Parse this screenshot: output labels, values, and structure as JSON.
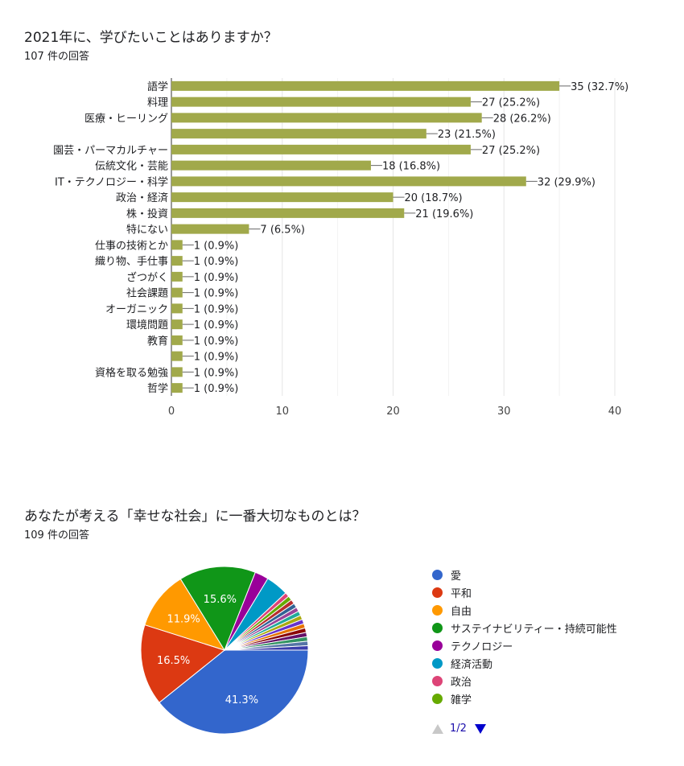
{
  "question1": {
    "title": "2021年に、学びたいことはありますか？",
    "count": "107 件の回答"
  },
  "question2": {
    "title": "あなたが考える「幸せな社会」に一番大切なものとは？",
    "count": "109 件の回答",
    "pager": "1/2"
  },
  "chart_data": [
    {
      "type": "bar",
      "orientation": "horizontal",
      "categories": [
        "語学",
        "料理",
        "医療・ヒーリング",
        "",
        "園芸・パーマカルチャー",
        "伝統文化・芸能",
        "IT・テクノロジー・科学",
        "政治・経済",
        "株・投資",
        "特にない",
        "仕事の技術とか",
        "織り物、手仕事",
        "ざつがく",
        "社会課題",
        "オーガニック",
        "環境問題",
        "教育",
        "",
        "資格を取る勉強",
        "哲学"
      ],
      "values": [
        35,
        27,
        28,
        23,
        27,
        18,
        32,
        20,
        21,
        7,
        1,
        1,
        1,
        1,
        1,
        1,
        1,
        1,
        1,
        1
      ],
      "data_labels": [
        "35 (32.7%)",
        "27 (25.2%)",
        "28 (26.2%)",
        "23 (21.5%)",
        "27 (25.2%)",
        "18 (16.8%)",
        "32 (29.9%)",
        "20 (18.7%)",
        "21 (19.6%)",
        "7 (6.5%)",
        "1 (0.9%)",
        "1 (0.9%)",
        "1 (0.9%)",
        "1 (0.9%)",
        "1 (0.9%)",
        "1 (0.9%)",
        "1 (0.9%)",
        "1 (0.9%)",
        "1 (0.9%)",
        "1 (0.9%)"
      ],
      "xlim": [
        0,
        40
      ],
      "xticks": [
        "0",
        "10",
        "20",
        "30",
        "40"
      ],
      "bar_color": "#a1a94b",
      "grid": true
    },
    {
      "type": "pie",
      "legend_position": "right",
      "labels": [
        "愛",
        "平和",
        "自由",
        "サステイナビリティー・持続可能性",
        "テクノロジー",
        "経済活動",
        "政治",
        "雑学"
      ],
      "values": [
        41.3,
        16.5,
        11.9,
        15.6,
        2.8,
        4.6,
        0.9,
        0.9
      ],
      "colors": [
        "#3366cc",
        "#dc3912",
        "#ff9900",
        "#109618",
        "#990099",
        "#0099c6",
        "#dd4477",
        "#66aa00"
      ],
      "slice_labels": [
        "41.3%",
        "16.5%",
        "11.9%",
        "15.6%",
        "",
        "",
        "",
        ""
      ],
      "other_slice_colors": [
        "#b82e2e",
        "#316395",
        "#994499",
        "#22aa99",
        "#aaaa11",
        "#6633cc",
        "#e67300",
        "#8b0707",
        "#651067",
        "#329262",
        "#5574a6",
        "#3b3eac"
      ],
      "other_slice_values": [
        0.9,
        0.9,
        0.9,
        0.9,
        0.9,
        0.9,
        0.9,
        0.9,
        0.9,
        0.9,
        0.9,
        0.9
      ]
    }
  ]
}
